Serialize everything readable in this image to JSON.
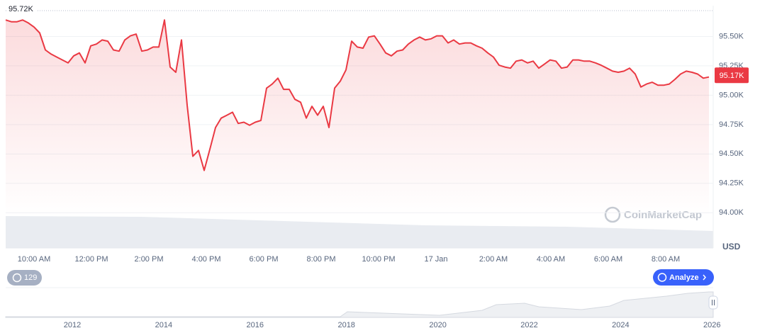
{
  "chart_data": {
    "type": "line",
    "series": [
      {
        "name": "Price",
        "color": "#ea3943",
        "values": [
          95640,
          95625,
          95625,
          95640,
          95615,
          95580,
          95530,
          95385,
          95350,
          95325,
          95300,
          95275,
          95335,
          95360,
          95275,
          95420,
          95435,
          95470,
          95460,
          95385,
          95375,
          95470,
          95505,
          95520,
          95375,
          95385,
          95410,
          95410,
          95640,
          95240,
          95195,
          95470,
          94915,
          94480,
          94530,
          94360,
          94540,
          94725,
          94805,
          94830,
          94855,
          94760,
          94770,
          94745,
          94770,
          94785,
          95060,
          95095,
          95145,
          95050,
          95050,
          94965,
          94940,
          94805,
          94905,
          94830,
          94905,
          94725,
          95060,
          95120,
          95215,
          95460,
          95410,
          95400,
          95495,
          95505,
          95435,
          95360,
          95335,
          95375,
          95385,
          95435,
          95470,
          95495,
          95470,
          95480,
          95505,
          95505,
          95445,
          95470,
          95435,
          95445,
          95445,
          95420,
          95400,
          95360,
          95325,
          95255,
          95240,
          95230,
          95290,
          95300,
          95275,
          95290,
          95230,
          95265,
          95300,
          95290,
          95230,
          95240,
          95300,
          95300,
          95290,
          95290,
          95275,
          95255,
          95230,
          95205,
          95195,
          95205,
          95230,
          95180,
          95070,
          95095,
          95110,
          95085,
          95085,
          95095,
          95135,
          95180,
          95205,
          95195,
          95180,
          95145,
          95155
        ]
      }
    ],
    "x_ticks": [
      "10:00 AM",
      "12:00 PM",
      "2:00 PM",
      "4:00 PM",
      "6:00 PM",
      "8:00 PM",
      "10:00 PM",
      "17 Jan",
      "2:00 AM",
      "4:00 AM",
      "6:00 AM",
      "8:00 AM"
    ],
    "ylim": [
      93700,
      95750
    ],
    "yticks": [
      {
        "value": 94000,
        "label": "94.00K"
      },
      {
        "value": 94250,
        "label": "94.25K"
      },
      {
        "value": 94500,
        "label": "94.50K"
      },
      {
        "value": 94750,
        "label": "94.75K"
      },
      {
        "value": 95000,
        "label": "95.00K"
      },
      {
        "value": 95250,
        "label": "95.25K"
      },
      {
        "value": 95500,
        "label": "95.50K"
      }
    ],
    "high": {
      "value": 95720,
      "label": "95.72K"
    },
    "current": {
      "value": 95170,
      "label": "95.17K"
    },
    "y_unit": "USD",
    "watermark": "CoinMarketCap",
    "grid": true,
    "history_badge": "129",
    "button": "Analyze",
    "navigator_years": [
      "2012",
      "2014",
      "2016",
      "2018",
      "2020",
      "2022",
      "2024",
      "2026"
    ]
  }
}
